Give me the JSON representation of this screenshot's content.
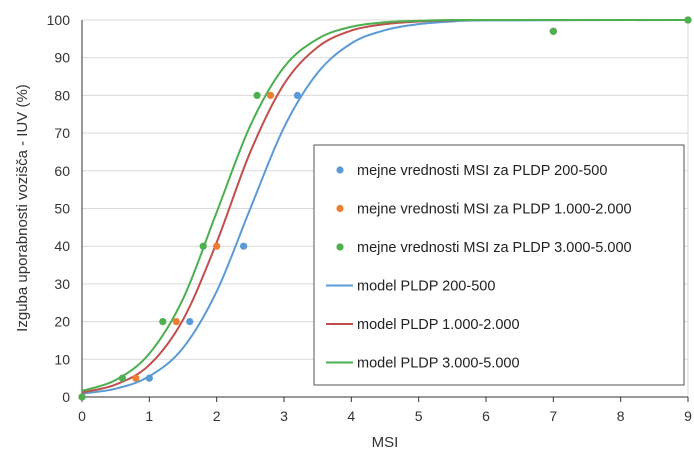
{
  "chart_data": {
    "type": "scatter",
    "title": "",
    "xlabel": "MSI",
    "ylabel": "Izguba uporabnosti vozišča - IUV (%)",
    "xlim": [
      0,
      9
    ],
    "ylim": [
      0,
      100
    ],
    "xticks": [
      0,
      1,
      2,
      3,
      4,
      5,
      6,
      7,
      8,
      9
    ],
    "yticks": [
      0,
      10,
      20,
      30,
      40,
      50,
      60,
      70,
      80,
      90,
      100
    ],
    "grid": "horizontal",
    "legend_position": "center-right",
    "series": [
      {
        "name": "mejne vrednosti MSI za PLDP 200-500",
        "kind": "points",
        "color": "#5b9bd5",
        "x": [
          0,
          1.0,
          1.6,
          2.4,
          3.2,
          7.0,
          9.0
        ],
        "y": [
          0,
          5,
          20,
          40,
          80,
          97,
          100
        ]
      },
      {
        "name": "mejne vrednosti MSI za PLDP 1.000-2.000",
        "kind": "points",
        "color": "#ed7d31",
        "x": [
          0,
          0.8,
          1.4,
          2.0,
          2.8,
          7.0,
          9.0
        ],
        "y": [
          0,
          5,
          20,
          40,
          80,
          97,
          100
        ]
      },
      {
        "name": "mejne vrednosti MSI za PLDP 3.000-5.000",
        "kind": "points",
        "color": "#4caf50",
        "x": [
          0,
          0.6,
          1.2,
          1.8,
          2.6,
          7.0,
          9.0
        ],
        "y": [
          0,
          5,
          20,
          40,
          80,
          97,
          100
        ]
      },
      {
        "name": "model PLDP 200-500",
        "kind": "line",
        "color": "#5b9bd5",
        "x": [
          0,
          0.5,
          1.0,
          1.5,
          2.0,
          2.5,
          3.0,
          3.5,
          4.0,
          4.5,
          5.0,
          5.5,
          6.0,
          9.0
        ],
        "y": [
          0.9,
          2.2,
          5.5,
          13,
          28,
          50,
          71.5,
          86,
          93.8,
          97.3,
          98.9,
          99.6,
          99.9,
          100
        ]
      },
      {
        "name": "model PLDP 1.000-2.000",
        "kind": "line",
        "color": "#c0504d",
        "x": [
          0,
          0.5,
          1.0,
          1.5,
          2.0,
          2.5,
          3.0,
          3.5,
          4.0,
          4.5,
          5.0,
          5.5,
          6.0,
          9.0
        ],
        "y": [
          1.2,
          3.3,
          8.5,
          20.5,
          41,
          65,
          83,
          92.8,
          97.2,
          98.9,
          99.6,
          99.9,
          100,
          100
        ]
      },
      {
        "name": "model PLDP 3.000-5.000",
        "kind": "line",
        "color": "#4caf50",
        "x": [
          0,
          0.5,
          1.0,
          1.5,
          2.0,
          2.5,
          3.0,
          3.5,
          4.0,
          4.5,
          5.0,
          5.5,
          6.0,
          9.0
        ],
        "y": [
          1.6,
          4.5,
          11.5,
          26,
          49,
          72,
          87.5,
          95,
          98.2,
          99.4,
          99.8,
          100,
          100,
          100
        ]
      }
    ]
  }
}
